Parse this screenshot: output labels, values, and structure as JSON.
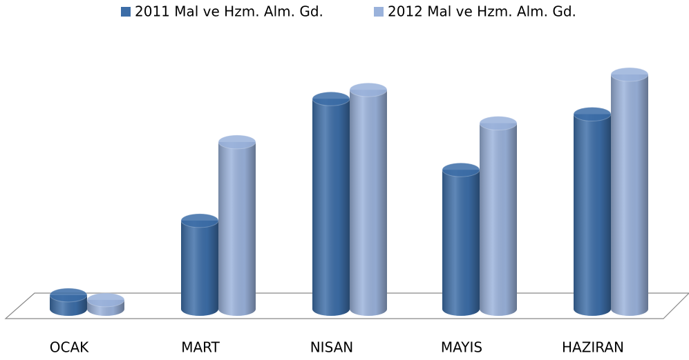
{
  "chart_data": {
    "type": "bar3d",
    "categories": [
      "OCAK",
      "MART",
      "NISAN",
      "MAYIS",
      "HAZIRAN"
    ],
    "series": [
      {
        "name": "2011 Mal ve Hzm. Alm. Gd.",
        "color": "#3c6da7",
        "values": [
          20,
          127,
          302,
          200,
          280
        ]
      },
      {
        "name": "2012 Mal ve Hzm. Alm. Gd.",
        "color": "#9ab2db",
        "values": [
          13,
          240,
          315,
          267,
          337
        ]
      }
    ],
    "legend": "top"
  }
}
